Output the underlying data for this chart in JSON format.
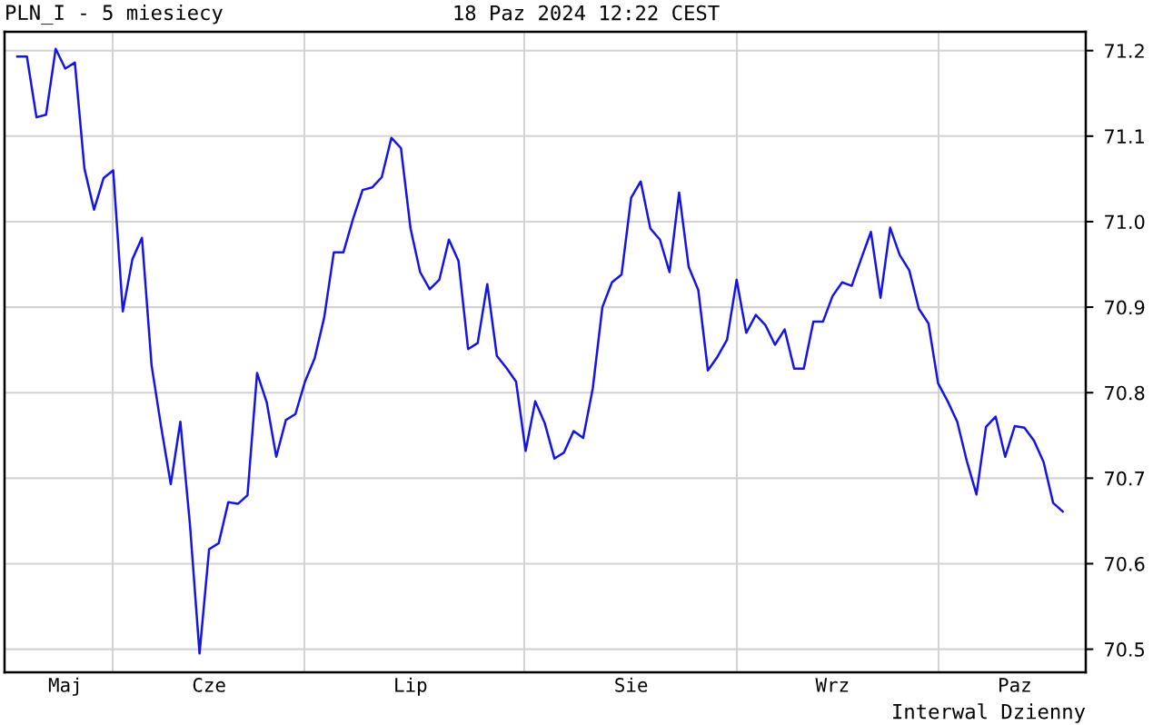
{
  "chart_data": {
    "type": "line",
    "title": "PLN_I - 5 miesiecy",
    "subtitle": "18 Paz 2024 12:22 CEST",
    "annotations": [
      "Interwal Dzienny"
    ],
    "categories": [
      null,
      null,
      null,
      null,
      null,
      "Maj",
      null,
      null,
      null,
      null,
      null,
      null,
      null,
      null,
      null,
      null,
      null,
      null,
      null,
      null,
      "Cze",
      null,
      null,
      null,
      null,
      null,
      null,
      null,
      null,
      null,
      null,
      null,
      null,
      null,
      null,
      null,
      null,
      null,
      null,
      null,
      null,
      "Lip",
      null,
      null,
      null,
      null,
      null,
      null,
      null,
      null,
      null,
      null,
      null,
      null,
      null,
      null,
      null,
      null,
      null,
      null,
      null,
      null,
      null,
      null,
      "Sie",
      null,
      null,
      null,
      null,
      null,
      null,
      null,
      null,
      null,
      null,
      null,
      null,
      null,
      null,
      null,
      null,
      null,
      null,
      null,
      null,
      "Wrz",
      null,
      null,
      null,
      null,
      null,
      null,
      null,
      null,
      null,
      null,
      null,
      null,
      null,
      null,
      null,
      null,
      null,
      null,
      "Paz",
      null,
      null,
      null,
      null,
      null
    ],
    "series": [
      {
        "color": "#1414e6",
        "values": [
          71.193,
          71.193,
          71.122,
          71.125,
          71.202,
          71.179,
          71.186,
          71.062,
          71.014,
          71.051,
          71.06,
          70.895,
          70.956,
          70.981,
          70.832,
          70.76,
          70.693,
          70.766,
          70.646,
          70.495,
          70.617,
          70.624,
          70.672,
          70.67,
          70.68,
          70.823,
          70.789,
          70.725,
          70.768,
          70.775,
          70.813,
          70.84,
          70.888,
          70.964,
          70.964,
          71.003,
          71.037,
          71.04,
          71.052,
          71.098,
          71.086,
          70.992,
          70.941,
          70.921,
          70.932,
          70.979,
          70.954,
          70.851,
          70.858,
          70.927,
          70.843,
          70.829,
          70.813,
          70.732,
          70.79,
          70.764,
          70.723,
          70.73,
          70.755,
          70.747,
          70.805,
          70.9,
          70.929,
          70.938,
          71.028,
          71.047,
          70.992,
          70.979,
          70.941,
          71.034,
          70.947,
          70.92,
          70.826,
          70.842,
          70.862,
          70.932,
          70.87,
          70.891,
          70.879,
          70.856,
          70.874,
          70.828,
          70.828,
          70.883,
          70.883,
          70.913,
          70.929,
          70.925,
          70.957,
          70.988,
          70.911,
          70.993,
          70.961,
          70.943,
          70.898,
          70.881,
          70.811,
          70.79,
          70.766,
          70.72,
          70.681,
          70.76,
          70.772,
          70.725,
          70.761,
          70.759,
          70.744,
          70.719,
          70.671,
          70.661
        ]
      }
    ],
    "ylim": [
      70.473,
      71.222
    ],
    "yticks": [
      70.5,
      70.6,
      70.7,
      70.8,
      70.9,
      {
        "value": 71.0,
        "label": "71.0"
      },
      71.1,
      71.2
    ],
    "grid": "y",
    "legend": false,
    "marker": "none",
    "line_style": "solid"
  }
}
